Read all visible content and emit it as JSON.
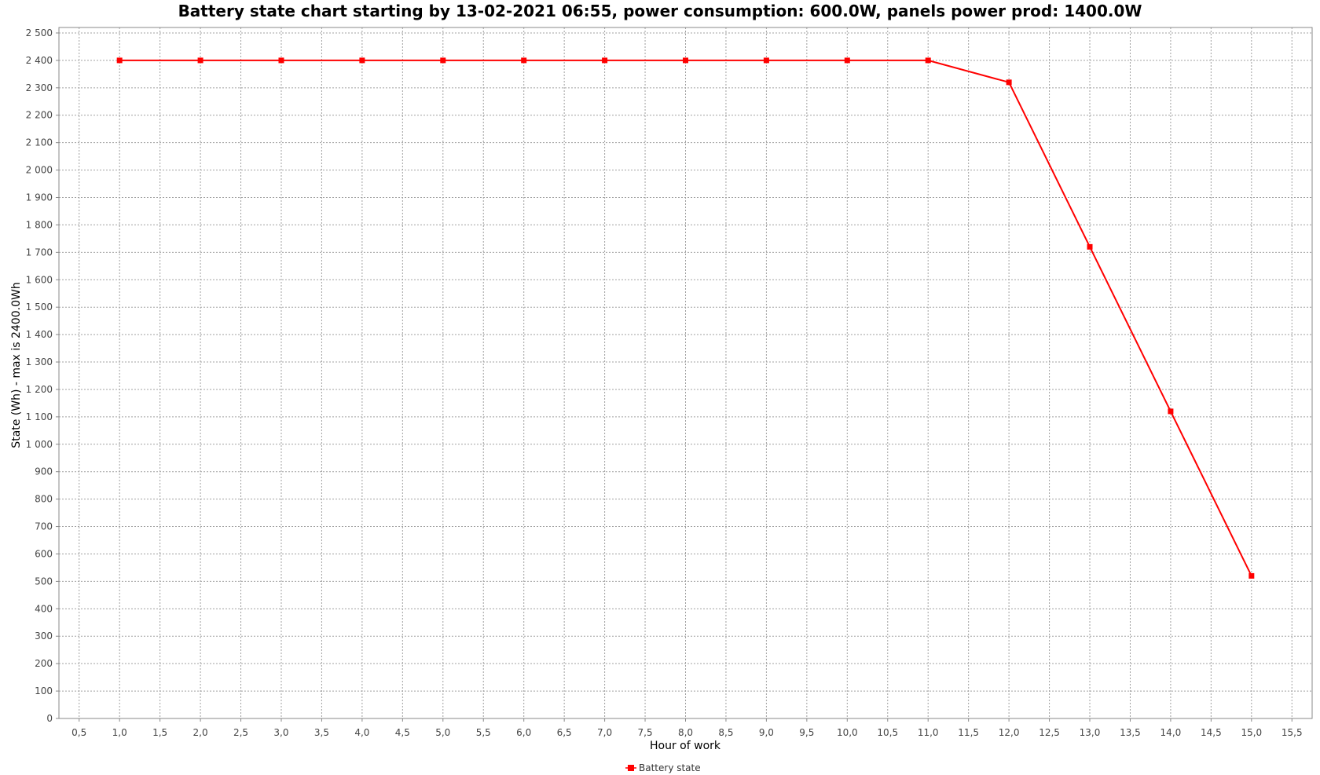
{
  "chart_data": {
    "type": "line",
    "title": "Battery state chart starting by 13-02-2021 06:55, power consumption: 600.0W, panels power prod: 1400.0W",
    "xlabel": "Hour of work",
    "ylabel": "State (Wh) - max is 2400.0Wh",
    "xlim": [
      0.25,
      15.75
    ],
    "ylim": [
      0,
      2520
    ],
    "x_ticks": [
      0.5,
      1.0,
      1.5,
      2.0,
      2.5,
      3.0,
      3.5,
      4.0,
      4.5,
      5.0,
      5.5,
      6.0,
      6.5,
      7.0,
      7.5,
      8.0,
      8.5,
      9.0,
      9.5,
      10.0,
      10.5,
      11.0,
      11.5,
      12.0,
      12.5,
      13.0,
      13.5,
      14.0,
      14.5,
      15.0,
      15.5
    ],
    "x_tick_labels": [
      "0,5",
      "1,0",
      "1,5",
      "2,0",
      "2,5",
      "3,0",
      "3,5",
      "4,0",
      "4,5",
      "5,0",
      "5,5",
      "6,0",
      "6,5",
      "7,0",
      "7,5",
      "8,0",
      "8,5",
      "9,0",
      "9,5",
      "10,0",
      "10,5",
      "11,0",
      "11,5",
      "12,0",
      "12,5",
      "13,0",
      "13,5",
      "14,0",
      "14,5",
      "15,0",
      "15,5"
    ],
    "y_ticks": [
      0,
      100,
      200,
      300,
      400,
      500,
      600,
      700,
      800,
      900,
      1000,
      1100,
      1200,
      1300,
      1400,
      1500,
      1600,
      1700,
      1800,
      1900,
      2000,
      2100,
      2200,
      2300,
      2400,
      2500
    ],
    "y_tick_labels": [
      "0",
      "100",
      "200",
      "300",
      "400",
      "500",
      "600",
      "700",
      "800",
      "900",
      "1 000",
      "1 100",
      "1 200",
      "1 300",
      "1 400",
      "1 500",
      "1 600",
      "1 700",
      "1 800",
      "1 900",
      "2 000",
      "2 100",
      "2 200",
      "2 300",
      "2 400",
      "2 500"
    ],
    "grid": true,
    "legend_position": "bottom",
    "series": [
      {
        "name": "Battery state",
        "color": "#ff0000",
        "marker": "square",
        "x": [
          1,
          2,
          3,
          4,
          5,
          6,
          7,
          8,
          9,
          10,
          11,
          12,
          13,
          14,
          15
        ],
        "y": [
          2400,
          2400,
          2400,
          2400,
          2400,
          2400,
          2400,
          2400,
          2400,
          2400,
          2400,
          2320,
          1720,
          1120,
          520
        ]
      }
    ]
  }
}
